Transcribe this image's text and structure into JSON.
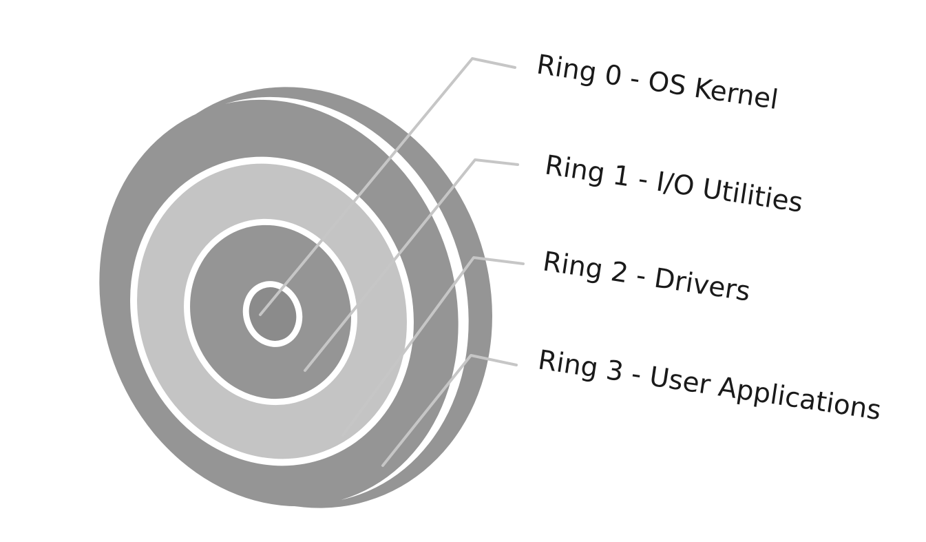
{
  "diagram": {
    "colors": {
      "background": "#ffffff",
      "ring_dark": "#959595",
      "ring_light": "#c4c4c4",
      "ring_core": "#8b8b8b",
      "separator": "#ffffff",
      "leader_line": "#c6c6c6",
      "label_text": "#1a1a1a"
    },
    "rings": [
      {
        "label": "Ring 0 - OS Kernel"
      },
      {
        "label": "Ring 1 - I/O Utilities"
      },
      {
        "label": "Ring 2 - Drivers"
      },
      {
        "label": "Ring 3 - User Applications"
      }
    ]
  }
}
